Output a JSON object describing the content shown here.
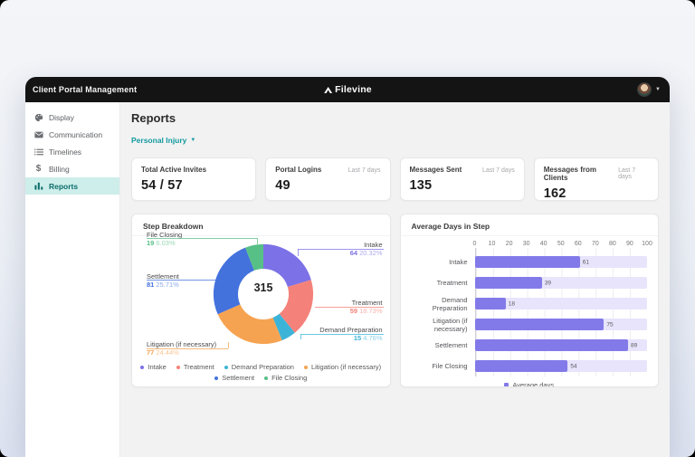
{
  "window": {
    "title": "Client Portal Management",
    "brand": "Filevine",
    "caret": "▼"
  },
  "sidebar": {
    "items": [
      {
        "label": "Display",
        "icon": "palette-icon",
        "active": false
      },
      {
        "label": "Communication",
        "icon": "envelope-icon",
        "active": false
      },
      {
        "label": "Timelines",
        "icon": "list-icon",
        "active": false
      },
      {
        "label": "Billing",
        "icon": "dollar-icon",
        "active": false
      },
      {
        "label": "Reports",
        "icon": "bar-chart-icon",
        "active": true
      }
    ]
  },
  "main": {
    "page_title": "Reports",
    "project_filter": {
      "label": "Personal Injury",
      "caret": "▼"
    },
    "stat_cards": [
      {
        "title": "Total Active Invites",
        "period": "",
        "value": "54 / 57"
      },
      {
        "title": "Portal Logins",
        "period": "Last 7 days",
        "value": "49"
      },
      {
        "title": "Messages Sent",
        "period": "Last 7 days",
        "value": "135"
      },
      {
        "title": "Messages from Clients",
        "period": "Last 7 days",
        "value": "162"
      }
    ]
  },
  "colors": {
    "accent_teal": "#149a9e",
    "sidebar_active_bg": "#cdeeea",
    "titlebar": "#141414"
  },
  "chart_data": [
    {
      "type": "pie",
      "title": "Step Breakdown",
      "total": 315,
      "segments": [
        {
          "label": "Intake",
          "value": 64,
          "pct": "20.32%",
          "color": "#7c71e6"
        },
        {
          "label": "Treatment",
          "value": 59,
          "pct": "18.73%",
          "color": "#f5827a"
        },
        {
          "label": "Demand Preparation",
          "value": 15,
          "pct": "4.76%",
          "color": "#3cb4d8"
        },
        {
          "label": "Litigation (if necessary)",
          "value": 77,
          "pct": "24.44%",
          "color": "#f6a351"
        },
        {
          "label": "Settlement",
          "value": 81,
          "pct": "25.71%",
          "color": "#4472dd"
        },
        {
          "label": "File Closing",
          "value": 19,
          "pct": "6.03%",
          "color": "#57c087"
        }
      ],
      "legend_rows": [
        [
          0,
          1,
          2,
          3
        ],
        [
          4,
          5
        ]
      ]
    },
    {
      "type": "bar",
      "title": "Average Days in Step",
      "orientation": "horizontal",
      "categories": [
        "Intake",
        "Treatment",
        "Demand Preparation",
        "Litigation (if necessary)",
        "Settlement",
        "File Closing"
      ],
      "values": [
        61,
        39,
        18,
        75,
        89,
        54
      ],
      "xlim": [
        0,
        100
      ],
      "x_ticks": [
        0,
        10,
        20,
        30,
        40,
        50,
        60,
        70,
        80,
        90,
        100
      ],
      "bar_color": "#837ae9",
      "track_color": "#e7e4fb",
      "legend": [
        {
          "label": "Average days",
          "color": "#837ae9"
        }
      ]
    }
  ]
}
